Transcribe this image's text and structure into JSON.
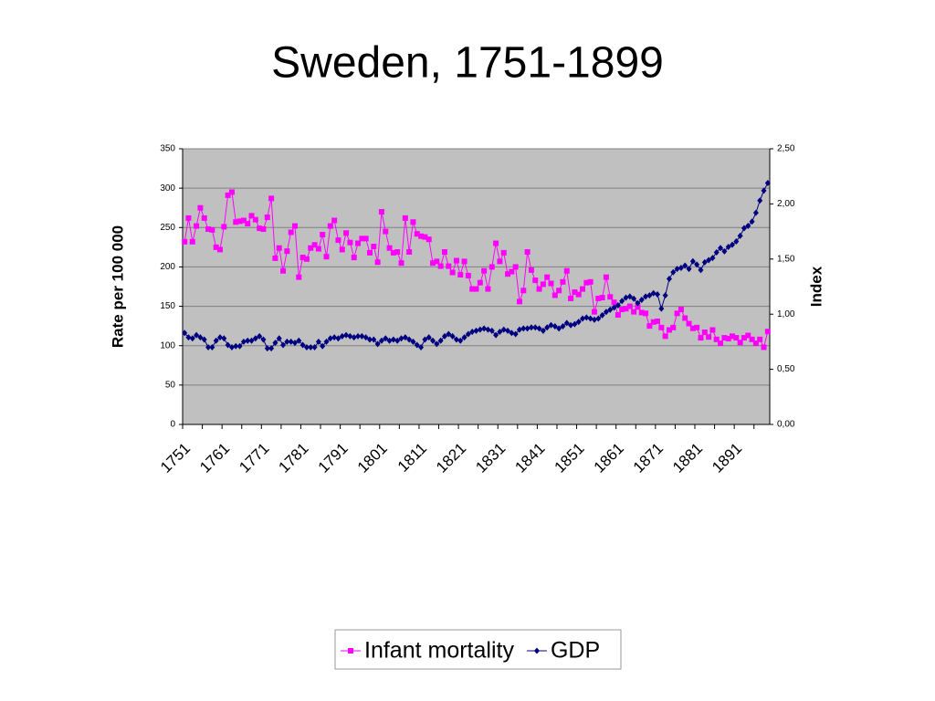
{
  "chart_data": {
    "type": "line",
    "title": "Sweden, 1751-1899",
    "y_label": "Rate per 100 000",
    "y2_label": "Index",
    "categories": [
      "1751",
      null,
      null,
      null,
      null,
      null,
      null,
      null,
      null,
      null,
      "1761",
      null,
      null,
      null,
      null,
      null,
      null,
      null,
      null,
      null,
      "1771",
      null,
      null,
      null,
      null,
      null,
      null,
      null,
      null,
      null,
      "1781",
      null,
      null,
      null,
      null,
      null,
      null,
      null,
      null,
      null,
      "1791",
      null,
      null,
      null,
      null,
      null,
      null,
      null,
      null,
      null,
      "1801",
      null,
      null,
      null,
      null,
      null,
      null,
      null,
      null,
      null,
      "1811",
      null,
      null,
      null,
      null,
      null,
      null,
      null,
      null,
      null,
      "1821",
      null,
      null,
      null,
      null,
      null,
      null,
      null,
      null,
      null,
      "1831",
      null,
      null,
      null,
      null,
      null,
      null,
      null,
      null,
      null,
      "1841",
      null,
      null,
      null,
      null,
      null,
      null,
      null,
      null,
      null,
      "1851",
      null,
      null,
      null,
      null,
      null,
      null,
      null,
      null,
      null,
      "1861",
      null,
      null,
      null,
      null,
      null,
      null,
      null,
      null,
      null,
      "1871",
      null,
      null,
      null,
      null,
      null,
      null,
      null,
      null,
      null,
      "1881",
      null,
      null,
      null,
      null,
      null,
      null,
      null,
      null,
      null,
      "1891",
      null,
      null,
      null,
      null,
      null,
      null,
      null,
      null
    ],
    "series": [
      {
        "name": "Infant mortality",
        "color": "#ff00ff",
        "marker": "square",
        "axis": "y",
        "values": [
          232,
          262,
          232,
          252,
          275,
          262,
          248,
          247,
          225,
          222,
          251,
          291,
          295,
          257,
          258,
          259,
          255,
          265,
          260,
          249,
          248,
          263,
          287,
          211,
          224,
          195,
          220,
          244,
          252,
          187,
          212,
          210,
          224,
          228,
          223,
          241,
          213,
          252,
          259,
          234,
          222,
          243,
          231,
          212,
          230,
          236,
          236,
          218,
          226,
          206,
          270,
          245,
          224,
          218,
          219,
          205,
          262,
          219,
          257,
          242,
          239,
          238,
          235,
          205,
          207,
          201,
          219,
          201,
          193,
          208,
          190,
          207,
          189,
          172,
          172,
          180,
          195,
          172,
          200,
          230,
          207,
          218,
          191,
          194,
          200,
          156,
          170,
          219,
          196,
          183,
          172,
          178,
          187,
          179,
          164,
          170,
          181,
          195,
          160,
          168,
          165,
          172,
          180,
          181,
          143,
          160,
          161,
          187,
          162,
          155,
          139,
          146,
          147,
          150,
          143,
          149,
          142,
          141,
          125,
          130,
          131,
          123,
          112,
          120,
          123,
          141,
          146,
          135,
          128,
          122,
          123,
          110,
          117,
          111,
          120,
          108,
          103,
          110,
          109,
          112,
          110,
          104,
          110,
          113,
          108,
          103,
          108,
          98,
          118
        ]
      },
      {
        "name": "GDP",
        "color": "#000080",
        "marker": "diamond",
        "axis": "y2",
        "values": [
          0.83,
          0.79,
          0.78,
          0.81,
          0.79,
          0.77,
          0.7,
          0.7,
          0.76,
          0.79,
          0.78,
          0.72,
          0.7,
          0.71,
          0.71,
          0.75,
          0.76,
          0.76,
          0.78,
          0.8,
          0.77,
          0.69,
          0.69,
          0.74,
          0.78,
          0.72,
          0.75,
          0.75,
          0.74,
          0.76,
          0.72,
          0.7,
          0.7,
          0.7,
          0.75,
          0.71,
          0.75,
          0.78,
          0.79,
          0.78,
          0.8,
          0.81,
          0.8,
          0.79,
          0.8,
          0.8,
          0.79,
          0.77,
          0.77,
          0.73,
          0.76,
          0.78,
          0.76,
          0.77,
          0.76,
          0.78,
          0.79,
          0.77,
          0.75,
          0.72,
          0.7,
          0.77,
          0.79,
          0.76,
          0.73,
          0.76,
          0.8,
          0.82,
          0.8,
          0.77,
          0.76,
          0.79,
          0.82,
          0.84,
          0.85,
          0.86,
          0.87,
          0.86,
          0.85,
          0.81,
          0.84,
          0.86,
          0.85,
          0.83,
          0.82,
          0.86,
          0.87,
          0.87,
          0.88,
          0.88,
          0.87,
          0.85,
          0.88,
          0.9,
          0.89,
          0.87,
          0.89,
          0.92,
          0.9,
          0.91,
          0.93,
          0.96,
          0.97,
          0.96,
          0.95,
          0.96,
          0.99,
          1.02,
          1.04,
          1.06,
          1.08,
          1.12,
          1.15,
          1.16,
          1.14,
          1.1,
          1.13,
          1.16,
          1.17,
          1.19,
          1.18,
          1.05,
          1.17,
          1.32,
          1.38,
          1.41,
          1.42,
          1.44,
          1.41,
          1.48,
          1.45,
          1.4,
          1.47,
          1.49,
          1.51,
          1.56,
          1.6,
          1.57,
          1.61,
          1.63,
          1.66,
          1.71,
          1.78,
          1.8,
          1.84,
          1.92,
          2.03,
          2.12,
          2.19
        ]
      }
    ],
    "ylim": [
      0,
      350
    ],
    "yticks": [
      0,
      50,
      100,
      150,
      200,
      250,
      300,
      350
    ],
    "y2lim": [
      0,
      2.5
    ],
    "y2ticks": [
      {
        "value": 0,
        "label": "0,00"
      },
      {
        "value": 0.5,
        "label": "0,50"
      },
      {
        "value": 1,
        "label": "1,00"
      },
      {
        "value": 1.5,
        "label": "1,50"
      },
      {
        "value": 2,
        "label": "2,00"
      },
      {
        "value": 2.5,
        "label": "2,50"
      }
    ],
    "grid": true,
    "legend": "bottom"
  }
}
